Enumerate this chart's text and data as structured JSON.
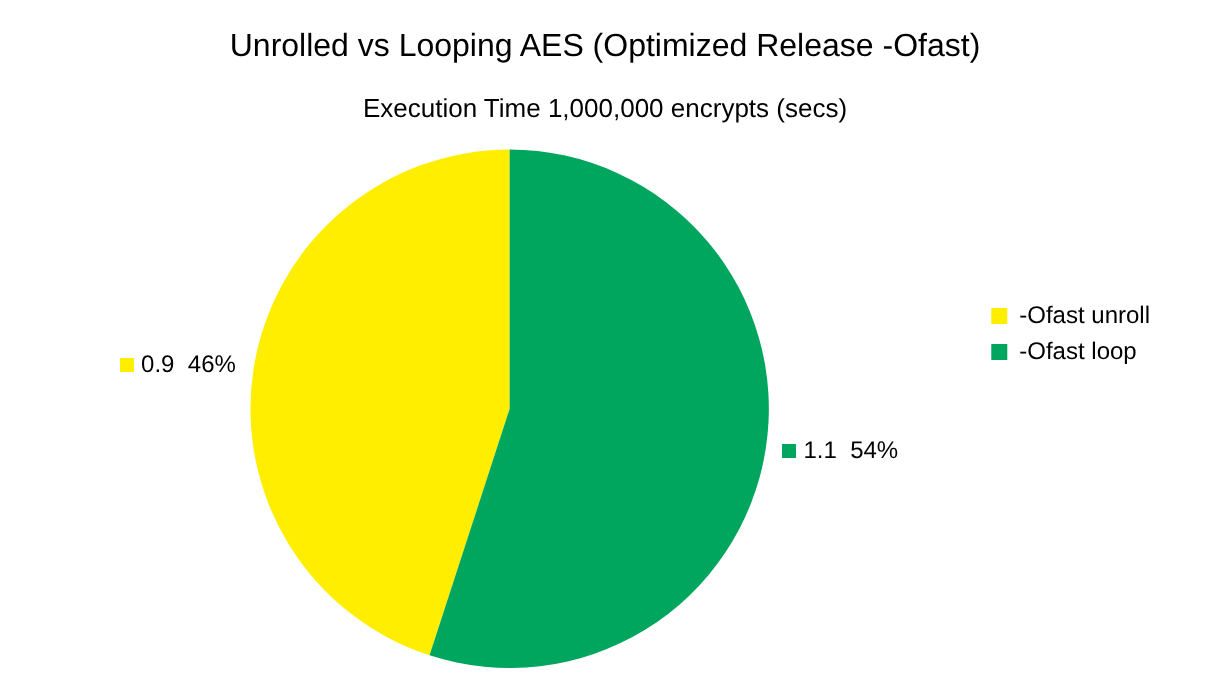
{
  "chart_data": {
    "type": "pie",
    "title": "Unrolled vs Looping AES (Optimized Release -Ofast)",
    "subtitle": "Execution Time 1,000,000 encrypts (secs)",
    "categories": [
      "-Ofast unroll",
      "-Ofast loop"
    ],
    "values": [
      0.9,
      1.1
    ],
    "colors": [
      "#ffee00",
      "#00a65d"
    ],
    "value_labels": [
      "0.9  46%",
      "1.1  54%"
    ],
    "legend": "right"
  }
}
